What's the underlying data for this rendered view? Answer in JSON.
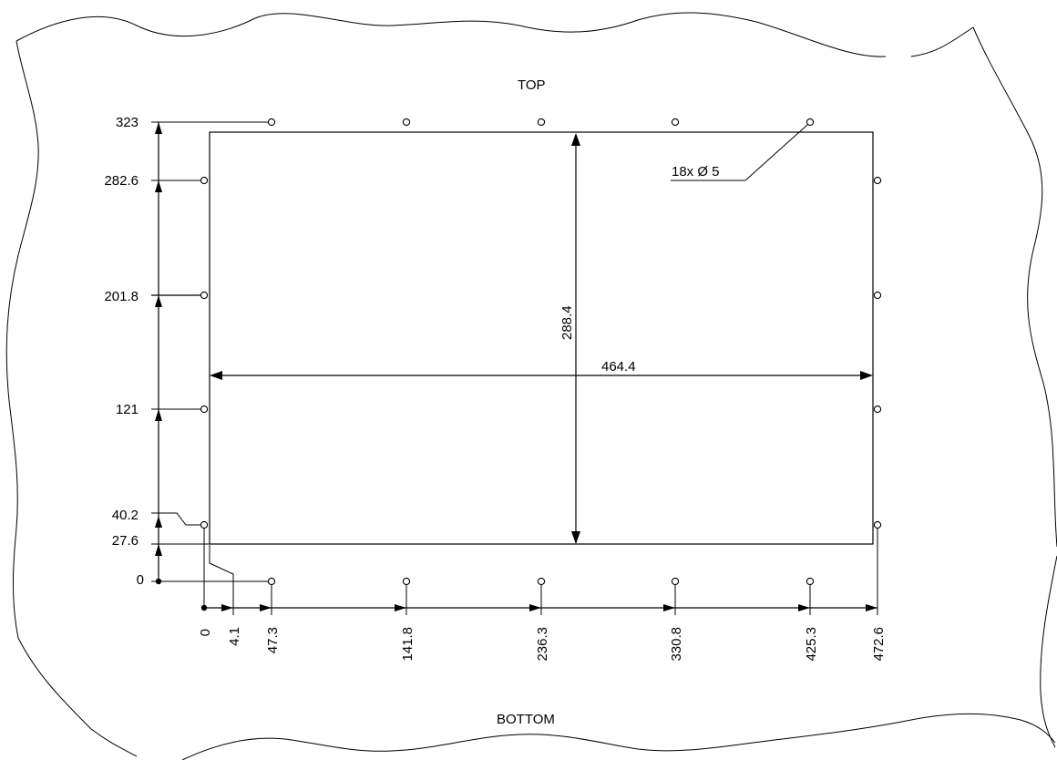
{
  "drawing": {
    "top_label": "TOP",
    "bottom_label": "BOTTOM",
    "hole_callout": "18x Ø 5",
    "overall_height": "288.4",
    "overall_width": "464.4",
    "vertical_dims": [
      "323",
      "282.6",
      "201.8",
      "121",
      "40.2",
      "27.6",
      "0"
    ],
    "horizontal_dims": [
      "0",
      "4.1",
      "47.3",
      "141.8",
      "236.3",
      "330.8",
      "425.3",
      "472.6"
    ]
  }
}
